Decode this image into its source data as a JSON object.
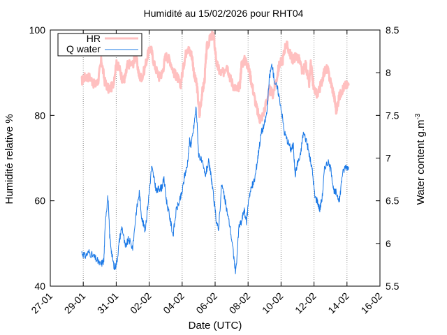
{
  "chart_data": {
    "type": "line",
    "title": "Humidité au 15/02/2026 pour RHT04",
    "xlabel": "Date (UTC)",
    "ylabel": "Humidité relative %",
    "y2label": "Water content g.m",
    "y2label_sup": "-3",
    "x_ticks": [
      "27-01",
      "29-01",
      "31-01",
      "02-02",
      "04-02",
      "06-02",
      "08-02",
      "10-02",
      "12-02",
      "14-02",
      "16-02"
    ],
    "x_range_days": [
      0,
      20
    ],
    "ylim": [
      40,
      100
    ],
    "y_ticks": [
      "40",
      "60",
      "80",
      "100"
    ],
    "y2lim": [
      5.5,
      8.5
    ],
    "y2_ticks": [
      "5.5",
      "6",
      "6.5",
      "7",
      "7.5",
      "8",
      "8.5"
    ],
    "vertical_grid": true,
    "legend_position": "top-left",
    "series": [
      {
        "name": "HR",
        "axis": "left",
        "color": "#ffc0c0",
        "x": [
          1.9,
          2.1,
          2.4,
          2.7,
          2.9,
          3.1,
          3.3,
          3.55,
          3.8,
          4.0,
          4.2,
          4.4,
          4.55,
          4.7,
          5.0,
          5.2,
          5.4,
          5.6,
          5.9,
          6.1,
          6.3,
          6.6,
          6.8,
          7.0,
          7.25,
          7.5,
          7.7,
          7.9,
          8.1,
          8.3,
          8.45,
          8.6,
          8.75,
          8.9,
          9.05,
          9.2,
          9.35,
          9.5,
          9.7,
          9.9,
          10.1,
          10.3,
          10.5,
          10.7,
          10.9,
          11.1,
          11.3,
          11.5,
          11.6,
          11.8,
          11.95,
          12.1,
          12.3,
          12.5,
          12.7,
          12.9,
          13.1,
          13.3,
          13.5,
          13.7,
          13.9,
          14.1,
          14.3,
          14.5,
          14.7,
          14.9,
          15.1,
          15.3,
          15.5,
          15.7,
          15.8,
          16.0,
          16.2,
          16.4,
          16.6,
          16.8,
          17.0,
          17.2,
          17.35,
          17.5,
          17.7,
          17.9,
          18.1
        ],
        "values": [
          88,
          89,
          89,
          87,
          88,
          93,
          88,
          86,
          87,
          92,
          91,
          88,
          89,
          92,
          92,
          94,
          89,
          89,
          94,
          96,
          92,
          89,
          90,
          94,
          93,
          90,
          89,
          87,
          92,
          96,
          95,
          94,
          89,
          87,
          80,
          85,
          88,
          96,
          98,
          99,
          92,
          90,
          90,
          92,
          89,
          87,
          86,
          87,
          92,
          93,
          92,
          90,
          86,
          82,
          79,
          80,
          83,
          86,
          85,
          88,
          92,
          93,
          97,
          95,
          93,
          94,
          93,
          90,
          92,
          87,
          92,
          86,
          85,
          87,
          90,
          91,
          88,
          85,
          81,
          84,
          86,
          87,
          87
        ]
      },
      {
        "name": "Q water",
        "axis": "right",
        "color": "#1a78e6",
        "x": [
          1.9,
          2.1,
          2.35,
          2.6,
          2.85,
          3.05,
          3.25,
          3.35,
          3.5,
          3.6,
          3.75,
          3.9,
          4.05,
          4.2,
          4.35,
          4.55,
          4.75,
          5.0,
          5.2,
          5.4,
          5.55,
          5.75,
          5.95,
          6.15,
          6.3,
          6.45,
          6.6,
          6.75,
          6.9,
          7.05,
          7.25,
          7.45,
          7.65,
          7.85,
          8.0,
          8.15,
          8.3,
          8.45,
          8.55,
          8.7,
          8.85,
          9.0,
          9.2,
          9.4,
          9.6,
          9.75,
          9.9,
          10.05,
          10.2,
          10.4,
          10.55,
          10.7,
          10.9,
          11.1,
          11.25,
          11.45,
          11.6,
          11.75,
          11.9,
          12.05,
          12.2,
          12.4,
          12.55,
          12.65,
          12.8,
          13.0,
          13.15,
          13.3,
          13.45,
          13.6,
          13.8,
          14.0,
          14.2,
          14.4,
          14.6,
          14.75,
          14.85,
          15.0,
          15.15,
          15.35,
          15.55,
          15.7,
          15.9,
          16.05,
          16.2,
          16.35,
          16.5,
          16.65,
          16.85,
          17.05,
          17.2,
          17.35,
          17.55,
          17.7,
          17.9,
          18.1
        ],
        "values": [
          5.9,
          5.85,
          5.9,
          5.85,
          5.8,
          5.75,
          5.8,
          6.3,
          6.55,
          6.1,
          5.85,
          5.7,
          5.8,
          6.05,
          6.2,
          5.95,
          6.05,
          5.95,
          6.35,
          6.6,
          6.3,
          6.15,
          6.5,
          6.9,
          6.75,
          6.6,
          6.65,
          6.65,
          6.75,
          6.5,
          6.3,
          6.1,
          6.4,
          6.5,
          6.6,
          6.8,
          6.9,
          7.2,
          7.15,
          7.35,
          7.6,
          7.05,
          6.95,
          6.8,
          6.95,
          6.8,
          6.55,
          6.3,
          6.15,
          6.7,
          6.55,
          6.4,
          6.2,
          5.9,
          5.65,
          6.2,
          6.25,
          6.4,
          6.25,
          6.55,
          6.65,
          6.75,
          6.95,
          7.1,
          7.3,
          7.4,
          7.55,
          7.95,
          8.1,
          7.9,
          7.8,
          7.6,
          7.3,
          7.2,
          7.1,
          7.15,
          6.8,
          6.95,
          7.0,
          7.3,
          7.2,
          7.05,
          6.85,
          6.55,
          6.5,
          6.4,
          6.55,
          6.9,
          6.95,
          6.85,
          6.6,
          6.6,
          6.5,
          6.8,
          6.9,
          6.9
        ]
      }
    ]
  }
}
